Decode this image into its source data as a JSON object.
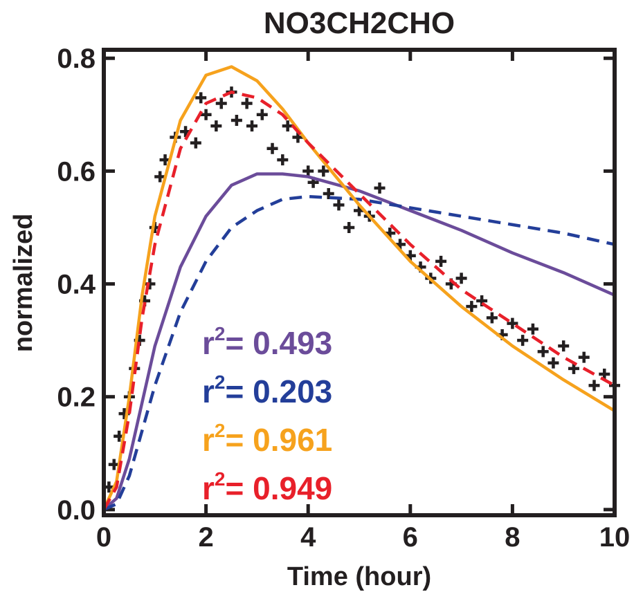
{
  "chart_data": {
    "type": "line",
    "title": "NO3CH2CHO",
    "xlabel": "Time (hour)",
    "ylabel": "normalized",
    "xlim": [
      0,
      10
    ],
    "ylim": [
      -0.01,
      0.815
    ],
    "xticks": [
      0,
      2,
      4,
      6,
      8,
      10
    ],
    "yticks": [
      {
        "value": 0,
        "label": "0.0"
      },
      0.2,
      0.4,
      0.6,
      0.8
    ],
    "points": {
      "color": "#231f20",
      "x": [
        0.1,
        0.2,
        0.3,
        0.4,
        0.5,
        0.6,
        0.7,
        0.8,
        0.9,
        1.0,
        1.1,
        1.2,
        1.4,
        1.6,
        1.8,
        1.9,
        2.0,
        2.2,
        2.3,
        2.5,
        2.6,
        2.8,
        2.9,
        3.1,
        3.3,
        3.5,
        3.6,
        3.8,
        4.0,
        4.1,
        4.3,
        4.4,
        4.6,
        4.8,
        5.0,
        5.2,
        5.4,
        5.6,
        5.8,
        6.0,
        6.2,
        6.4,
        6.6,
        6.8,
        7.0,
        7.2,
        7.4,
        7.6,
        7.8,
        8.0,
        8.2,
        8.4,
        8.6,
        8.8,
        9.0,
        9.2,
        9.4,
        9.6,
        9.8,
        10.0
      ],
      "values": [
        0.04,
        0.08,
        0.13,
        0.17,
        0.2,
        0.25,
        0.3,
        0.37,
        0.4,
        0.5,
        0.59,
        0.62,
        0.66,
        0.67,
        0.65,
        0.73,
        0.7,
        0.68,
        0.72,
        0.74,
        0.69,
        0.72,
        0.68,
        0.7,
        0.64,
        0.62,
        0.68,
        0.66,
        0.6,
        0.58,
        0.6,
        0.56,
        0.54,
        0.5,
        0.53,
        0.52,
        0.57,
        0.49,
        0.47,
        0.45,
        0.43,
        0.41,
        0.44,
        0.4,
        0.41,
        0.36,
        0.37,
        0.34,
        0.31,
        0.33,
        0.3,
        0.32,
        0.28,
        0.26,
        0.29,
        0.25,
        0.27,
        0.22,
        0.24,
        0.22
      ]
    },
    "line_x": [
      0,
      0.25,
      0.5,
      0.75,
      1,
      1.5,
      2,
      2.5,
      3,
      3.5,
      4,
      5,
      6,
      7,
      8,
      9,
      10
    ],
    "lines": [
      {
        "color": "#6b4c9a",
        "dashed": false,
        "values": [
          0,
          0.02,
          0.09,
          0.19,
          0.29,
          0.43,
          0.52,
          0.575,
          0.595,
          0.595,
          0.59,
          0.565,
          0.53,
          0.495,
          0.455,
          0.42,
          0.38
        ]
      },
      {
        "color": "#233e99",
        "dashed": true,
        "values": [
          0,
          0.01,
          0.06,
          0.14,
          0.22,
          0.35,
          0.44,
          0.5,
          0.53,
          0.55,
          0.555,
          0.55,
          0.535,
          0.52,
          0.505,
          0.49,
          0.47
        ]
      },
      {
        "color": "#f6a21d",
        "dashed": false,
        "values": [
          0,
          0.05,
          0.2,
          0.38,
          0.52,
          0.69,
          0.77,
          0.785,
          0.76,
          0.71,
          0.65,
          0.54,
          0.44,
          0.36,
          0.29,
          0.23,
          0.175
        ]
      },
      {
        "color": "#e8202a",
        "dashed": true,
        "values": [
          0,
          0.04,
          0.17,
          0.34,
          0.47,
          0.64,
          0.72,
          0.74,
          0.73,
          0.7,
          0.65,
          0.56,
          0.47,
          0.39,
          0.33,
          0.27,
          0.22
        ]
      }
    ],
    "annotations": [
      {
        "base": "r",
        "exp": "2",
        "text": "= 0.493",
        "color": "#6b4c9a"
      },
      {
        "base": "r",
        "exp": "2",
        "text": "= 0.203",
        "color": "#233e99"
      },
      {
        "base": "r",
        "exp": "2",
        "text": "= 0.961",
        "color": "#f6a21d"
      },
      {
        "base": "r",
        "exp": "2",
        "text": "= 0.949",
        "color": "#e8202a"
      }
    ]
  }
}
